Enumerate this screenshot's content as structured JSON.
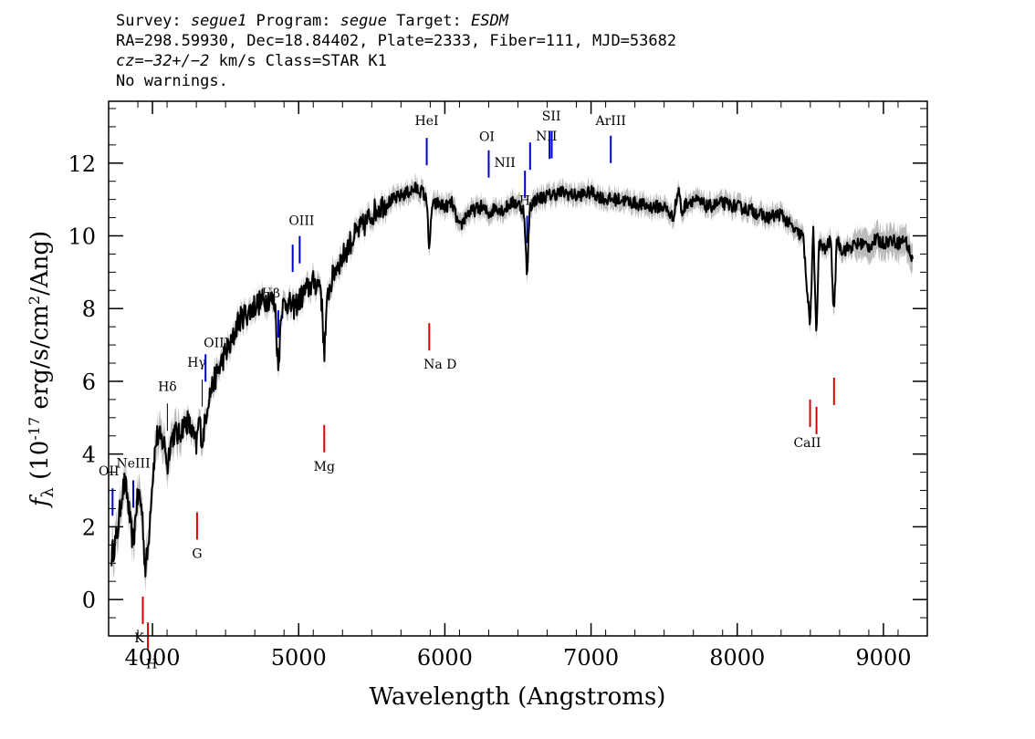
{
  "header": {
    "line1": {
      "survey_label": "Survey: ",
      "survey": "segue1",
      "program_label": " Program: ",
      "program": "segue",
      "target_label": " Target: ",
      "target": "ESDM"
    },
    "line2": "RA=298.59930, Dec=18.84402, Plate=2333, Fiber=111, MJD=53682",
    "line3": {
      "cz_label": "cz",
      "cz_value": "=−32+/−2",
      "cz_rest": " km/s Class=STAR K1"
    },
    "line4": "No warnings."
  },
  "colors": {
    "emission": "#0000cc",
    "absorption": "#dd0000",
    "spectrum": "#000000",
    "error_band": "#bbbbbb"
  },
  "chart_data": {
    "type": "line",
    "xlabel": "Wavelength (Angstroms)",
    "ylabel": "f_λ (10^-17 erg/s/cm^2/Ang)",
    "xlim": [
      3700,
      9300
    ],
    "ylim": [
      -1,
      13.7
    ],
    "xticks": [
      4000,
      5000,
      6000,
      7000,
      8000,
      9000
    ],
    "yticks": [
      0,
      2,
      4,
      6,
      8,
      10,
      12
    ],
    "series": [
      {
        "x": [
          3720,
          3760,
          3790,
          3810,
          3830,
          3850,
          3870,
          3890,
          3910,
          3930,
          3950,
          3970,
          3990,
          4010,
          4030,
          4060,
          4090,
          4101,
          4120,
          4150,
          4180,
          4210,
          4240,
          4270,
          4300,
          4320,
          4340,
          4380,
          4420,
          4460,
          4500,
          4540,
          4580,
          4620,
          4660,
          4700,
          4750,
          4800,
          4840,
          4861,
          4880,
          4920,
          4960,
          5000,
          5050,
          5100,
          5150,
          5175,
          5200,
          5250,
          5300,
          5350,
          5400,
          5450,
          5500,
          5550,
          5600,
          5650,
          5700,
          5750,
          5800,
          5850,
          5880,
          5893,
          5910,
          5950,
          6000,
          6050,
          6100,
          6150,
          6200,
          6250,
          6300,
          6350,
          6400,
          6450,
          6500,
          6540,
          6563,
          6580,
          6620,
          6700,
          6800,
          6900,
          7000,
          7100,
          7200,
          7300,
          7400,
          7500,
          7560,
          7600,
          7620,
          7650,
          7700,
          7800,
          7900,
          8000,
          8100,
          8200,
          8300,
          8400,
          8450,
          8498,
          8520,
          8542,
          8560,
          8600,
          8640,
          8662,
          8680,
          8720,
          8780,
          8850,
          8900,
          8950,
          9000,
          9050,
          9100,
          9150,
          9200
        ],
        "y": [
          1.2,
          1.8,
          2.9,
          3.2,
          2.8,
          2.0,
          1.5,
          2.6,
          2.9,
          2.4,
          0.8,
          1.4,
          2.8,
          3.8,
          4.5,
          4.4,
          4.2,
          3.6,
          4.3,
          4.6,
          4.5,
          4.8,
          4.9,
          4.6,
          4.2,
          5.0,
          4.3,
          5.5,
          6.0,
          6.4,
          6.8,
          7.0,
          7.6,
          7.8,
          7.9,
          8.1,
          8.2,
          8.3,
          8.1,
          6.2,
          8.0,
          8.2,
          8.0,
          8.2,
          8.5,
          8.7,
          8.7,
          6.8,
          8.4,
          9.1,
          9.4,
          9.8,
          10.1,
          10.3,
          10.6,
          10.8,
          10.9,
          11.0,
          11.1,
          11.2,
          11.3,
          11.2,
          10.9,
          9.4,
          10.8,
          10.9,
          10.8,
          10.9,
          10.2,
          10.6,
          10.7,
          10.8,
          10.6,
          10.8,
          10.7,
          10.9,
          10.9,
          10.7,
          8.8,
          10.8,
          11.0,
          11.1,
          11.2,
          11.1,
          11.2,
          11.0,
          11.0,
          10.9,
          10.8,
          10.8,
          10.5,
          11.3,
          10.6,
          10.9,
          11.0,
          10.8,
          10.9,
          10.8,
          10.7,
          10.5,
          10.6,
          10.1,
          10.0,
          7.5,
          10.1,
          7.3,
          9.8,
          9.6,
          9.9,
          7.7,
          9.9,
          9.6,
          9.7,
          9.8,
          9.7,
          9.9,
          9.8,
          9.9,
          9.8,
          9.9,
          9.3
        ]
      }
    ],
    "lines": [
      {
        "label": "OII",
        "wave": 3727,
        "kind": "emission"
      },
      {
        "label": "NeIII",
        "wave": 3869,
        "kind": "emission"
      },
      {
        "label": "K",
        "wave": 3934,
        "kind": "absorption"
      },
      {
        "label": "H",
        "wave": 3969,
        "kind": "absorption"
      },
      {
        "label": "Hδ",
        "wave": 4102,
        "kind": "balmer"
      },
      {
        "label": "G",
        "wave": 4305,
        "kind": "absorption"
      },
      {
        "label": "Hγ",
        "wave": 4340,
        "kind": "balmer"
      },
      {
        "label": "OIII",
        "wave": 4363,
        "kind": "emission"
      },
      {
        "label": "Hβ",
        "wave": 4861,
        "kind": "emission"
      },
      {
        "label": "OIII",
        "wave": 4959,
        "kind": "emission"
      },
      {
        "label": "OIII",
        "wave": 5007,
        "kind": "emission"
      },
      {
        "label": "Mg",
        "wave": 5175,
        "kind": "absorption"
      },
      {
        "label": "HeI",
        "wave": 5876,
        "kind": "emission"
      },
      {
        "label": "Na D",
        "wave": 5893,
        "kind": "absorption"
      },
      {
        "label": "OI",
        "wave": 6300,
        "kind": "emission"
      },
      {
        "label": "NII",
        "wave": 6548,
        "kind": "emission"
      },
      {
        "label": "Hα",
        "wave": 6563,
        "kind": "emission"
      },
      {
        "label": "NII",
        "wave": 6583,
        "kind": "emission"
      },
      {
        "label": "SII",
        "wave": 6716,
        "kind": "emission"
      },
      {
        "label": "SII",
        "wave": 6731,
        "kind": "emission"
      },
      {
        "label": "ArIII",
        "wave": 7135,
        "kind": "emission"
      },
      {
        "label": "CaII",
        "wave": 8498,
        "kind": "absorption"
      },
      {
        "label": "CaII",
        "wave": 8542,
        "kind": "absorption"
      },
      {
        "label": "CaII",
        "wave": 8662,
        "kind": "absorption"
      }
    ]
  }
}
